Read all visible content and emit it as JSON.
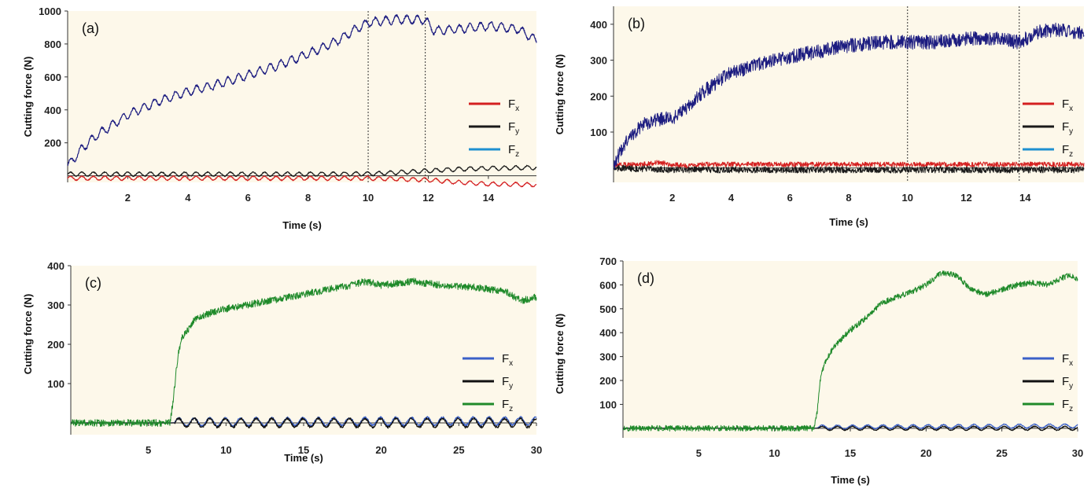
{
  "chart_data": [
    {
      "id": "a",
      "type": "line",
      "panel_label": "(a)",
      "xlabel": "Time (s)",
      "ylabel": "Cutting force (N)",
      "xlim": [
        0,
        15.6
      ],
      "ylim": [
        -40,
        1000
      ],
      "x_ticks": [
        2,
        4,
        6,
        8,
        10,
        12,
        14
      ],
      "y_ticks": [
        200,
        400,
        600,
        800,
        1000
      ],
      "vlines": [
        10.0,
        11.9
      ],
      "series": [
        {
          "name": "Fx",
          "color": "#d42020",
          "x": [
            0,
            2,
            4,
            6,
            8,
            10,
            11,
            12,
            13,
            14,
            15.6
          ],
          "y": [
            -15,
            -15,
            -15,
            -15,
            -15,
            -15,
            -20,
            -25,
            -40,
            -50,
            -55
          ],
          "oscillation": {
            "amplitude": 12,
            "period": 0.38
          }
        },
        {
          "name": "Fy",
          "color": "#1a1a1a",
          "x": [
            0,
            2,
            4,
            6,
            8,
            10,
            11,
            12,
            13,
            14,
            15.6
          ],
          "y": [
            10,
            10,
            10,
            10,
            10,
            12,
            20,
            30,
            40,
            45,
            50
          ],
          "oscillation": {
            "amplitude": 12,
            "period": 0.38
          }
        },
        {
          "name": "Fz",
          "color": "#1e90d0",
          "x": [],
          "y": []
        },
        {
          "name": "",
          "color": "#1c1c80",
          "x": [
            0,
            0.5,
            1,
            1.5,
            2,
            3,
            4,
            5,
            6,
            7,
            8,
            9,
            9.5,
            10,
            11,
            11.9,
            12.2,
            13,
            14,
            15,
            15.6
          ],
          "y": [
            60,
            170,
            250,
            310,
            370,
            450,
            510,
            555,
            610,
            670,
            740,
            820,
            880,
            930,
            950,
            945,
            880,
            890,
            910,
            890,
            820
          ],
          "oscillation": {
            "amplitude": 25,
            "period": 0.35
          }
        }
      ],
      "legend": {
        "position": "right",
        "entries": [
          {
            "base": "F",
            "sub": "x",
            "color": "#d42020"
          },
          {
            "base": "F",
            "sub": "y",
            "color": "#1a1a1a"
          },
          {
            "base": "F",
            "sub": "z",
            "color": "#1e90d0"
          }
        ]
      }
    },
    {
      "id": "b",
      "type": "line",
      "panel_label": "(b)",
      "xlabel": "Time (s)",
      "ylabel": "Cutting force (N)",
      "xlim": [
        0,
        16
      ],
      "ylim": [
        -40,
        450
      ],
      "x_ticks": [
        2,
        4,
        6,
        8,
        10,
        12,
        14
      ],
      "y_ticks": [
        100,
        200,
        300,
        400
      ],
      "vlines": [
        10.0,
        13.8
      ],
      "series": [
        {
          "name": "Fx",
          "color": "#d42020",
          "x": [
            0,
            1,
            1.5,
            2,
            2.5,
            3,
            4,
            6,
            8,
            10,
            12,
            14,
            16
          ],
          "y": [
            10,
            10,
            15,
            10,
            5,
            10,
            10,
            10,
            10,
            10,
            10,
            10,
            10
          ],
          "oscillation": {
            "amplitude": 7,
            "period": 0.12
          }
        },
        {
          "name": "Fy",
          "color": "#1a1a1a",
          "x": [
            0,
            2,
            4,
            6,
            8,
            10,
            12,
            14,
            16
          ],
          "y": [
            0,
            -5,
            -5,
            -5,
            -5,
            -5,
            -5,
            -5,
            -5
          ],
          "oscillation": {
            "amplitude": 9,
            "period": 0.12
          }
        },
        {
          "name": "Fz",
          "color": "#1e90d0",
          "x": [],
          "y": []
        },
        {
          "name": "",
          "color": "#1c1c80",
          "x": [
            0,
            0.5,
            1,
            1.5,
            2,
            2.5,
            3,
            4,
            5,
            6,
            7,
            8,
            9,
            10,
            11,
            12,
            13,
            13.8,
            14.5,
            15,
            16
          ],
          "y": [
            10,
            80,
            120,
            135,
            140,
            165,
            210,
            265,
            290,
            310,
            325,
            340,
            350,
            350,
            350,
            360,
            360,
            350,
            380,
            385,
            375
          ],
          "oscillation": {
            "amplitude": 20,
            "period": 0.1
          }
        }
      ],
      "legend": {
        "position": "right",
        "entries": [
          {
            "base": "F",
            "sub": "x",
            "color": "#d42020"
          },
          {
            "base": "F",
            "sub": "y",
            "color": "#1a1a1a"
          },
          {
            "base": "F",
            "sub": "z",
            "color": "#1e90d0"
          }
        ]
      }
    },
    {
      "id": "c",
      "type": "line",
      "panel_label": "(c)",
      "xlabel": "Time (s)",
      "ylabel": "Cutting force (N)",
      "xlim": [
        0,
        30
      ],
      "ylim": [
        -30,
        400
      ],
      "x_ticks": [
        5,
        10,
        15,
        20,
        25,
        30
      ],
      "y_ticks": [
        100,
        200,
        300,
        400
      ],
      "vlines": [],
      "series": [
        {
          "name": "Fx",
          "color": "#3a60c8",
          "x": [
            0,
            6.5,
            7,
            30
          ],
          "y": [
            0,
            0,
            2,
            5
          ],
          "oscillation": {
            "amplitude": 10,
            "start": 6.7,
            "period": 1.0
          }
        },
        {
          "name": "Fy",
          "color": "#111111",
          "x": [
            0,
            6.5,
            7,
            30
          ],
          "y": [
            0,
            0,
            0,
            0
          ],
          "oscillation": {
            "amplitude": 11,
            "start": 6.7,
            "period": 1.0
          }
        },
        {
          "name": "Fz",
          "color": "#1f8a2a",
          "x": [
            0,
            6.4,
            6.6,
            6.9,
            7.2,
            7.6,
            8,
            9,
            10,
            12,
            14,
            16,
            18,
            19,
            20,
            22,
            24,
            26,
            28,
            29,
            30
          ],
          "y": [
            0,
            0,
            60,
            170,
            220,
            240,
            265,
            280,
            290,
            305,
            320,
            335,
            350,
            360,
            350,
            360,
            350,
            345,
            335,
            310,
            320
          ],
          "oscillation": {
            "amplitude": 9,
            "period": 0.15
          }
        }
      ],
      "legend": {
        "position": "right",
        "entries": [
          {
            "base": "F",
            "sub": "x",
            "color": "#3a60c8"
          },
          {
            "base": "F",
            "sub": "y",
            "color": "#111111"
          },
          {
            "base": "F",
            "sub": "z",
            "color": "#1f8a2a"
          }
        ]
      }
    },
    {
      "id": "d",
      "type": "line",
      "panel_label": "(d)",
      "xlabel": "Time (s)",
      "ylabel": "Cutting force (N)",
      "xlim": [
        0,
        30
      ],
      "ylim": [
        -40,
        700
      ],
      "x_ticks": [
        5,
        10,
        15,
        20,
        25,
        30
      ],
      "y_ticks": [
        100,
        200,
        300,
        400,
        500,
        600,
        700
      ],
      "vlines": [],
      "series": [
        {
          "name": "Fx",
          "color": "#3a60c8",
          "x": [
            0,
            12.7,
            13,
            30
          ],
          "y": [
            0,
            0,
            5,
            10
          ],
          "oscillation": {
            "amplitude": 8,
            "start": 12.9,
            "period": 1.0
          }
        },
        {
          "name": "Fy",
          "color": "#111111",
          "x": [
            0,
            12.7,
            13,
            30
          ],
          "y": [
            0,
            0,
            0,
            0
          ],
          "oscillation": {
            "amplitude": 8,
            "start": 12.9,
            "period": 1.0
          }
        },
        {
          "name": "Fz",
          "color": "#1f8a2a",
          "x": [
            0,
            12.6,
            12.8,
            13,
            13.3,
            13.7,
            14.2,
            15,
            16,
            17,
            18,
            19,
            20,
            21,
            22,
            23,
            24,
            25,
            26,
            27,
            28,
            29,
            29.5,
            30
          ],
          "y": [
            0,
            0,
            60,
            200,
            270,
            320,
            360,
            410,
            460,
            520,
            550,
            570,
            600,
            650,
            640,
            580,
            560,
            580,
            600,
            610,
            600,
            630,
            640,
            620
          ],
          "oscillation": {
            "amplitude": 12,
            "period": 0.15
          }
        }
      ],
      "legend": {
        "position": "right",
        "entries": [
          {
            "base": "F",
            "sub": "x",
            "color": "#3a60c8"
          },
          {
            "base": "F",
            "sub": "y",
            "color": "#111111"
          },
          {
            "base": "F",
            "sub": "z",
            "color": "#1f8a2a"
          }
        ]
      }
    }
  ]
}
